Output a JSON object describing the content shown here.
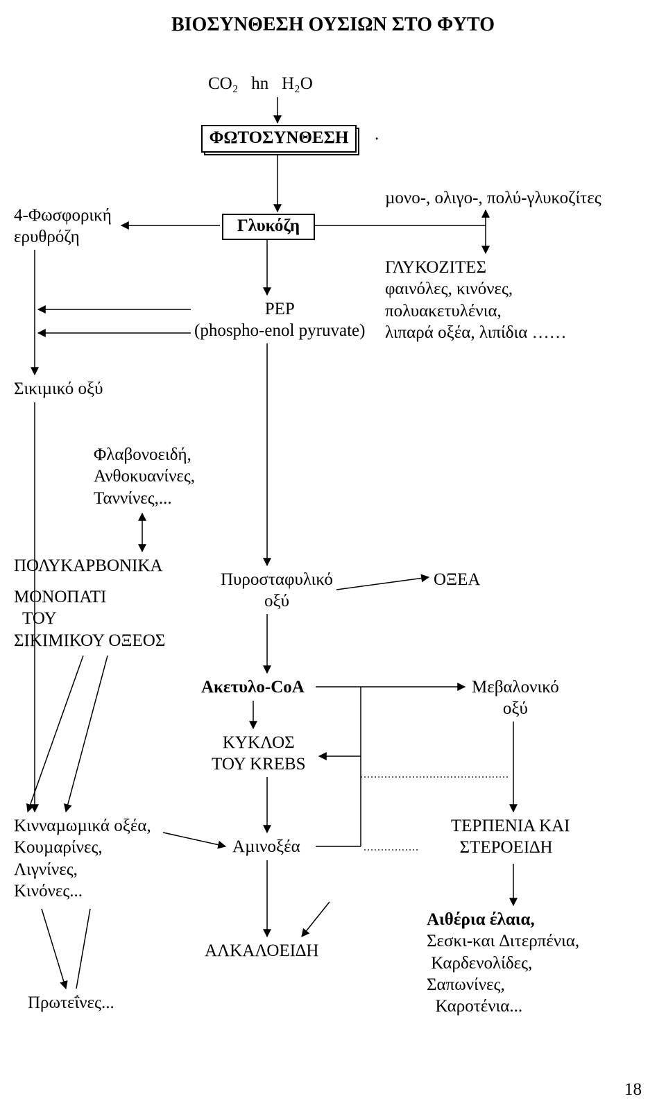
{
  "title": "ΒΙΟΣΥΝΘΕΣΗ ΟΥΣΙΩΝ ΣΤΟ ΦΥΤΟ",
  "inputs": "CO₂   hn   H₂O",
  "photosynthesis": "ΦΩΤΟΣΥΝΘΕΣΗ",
  "dot": ".",
  "glucose": "Γλυκόζη",
  "glycosites": "µονο-, ολιγο-, πολύ-γλυκοζίτες",
  "erythrose": "4-Φωσφορική\nερυθρόζη",
  "pep": "PEP\n(phospho-enol pyruvate)",
  "glycosides_block": "ΓΛΥΚΟΖΙΤΕΣ\nφαινόλες, κινόνες,\nπολυακετυλένια,\nλιπαρά οξέα, λιπίδια ……",
  "shikimic": "Σικιµικό οξύ",
  "flavonoids": "Φλαβονοειδή,\nΑνθοκυανίνες,\nΤαννίνες,...",
  "polycarbonic": "ΠΟΛΥΚΑΡΒΟΝΙΚΑ",
  "path_label": "ΜΟΝΟΠΑΤΙ\n  ΤΟΥ\nΣΙΚΙΜΙΚΟΥ ΟΞΕΟΣ",
  "pyruvic": "Πυροσταφυλικό\nοξύ",
  "oxea": "ΟΞΕΑ",
  "acetylcoa": "Ακετυλο-CoA",
  "mevalonic": "Μεβαλονικό\nοξύ",
  "krebs": "ΚΥΚΛΟΣ\nΤΟΥ KREBS",
  "cinnamic": "Κινναµωµικά οξέα,\nΚουµαρίνες,\nΛιγνίνες,\nΚινόνες...",
  "aminoacids": "Αµινοξέα",
  "terpenes": "ΤΕΡΠΕΝΙΑ ΚΑΙ\n  ΣΤΕΡΟΕΙ∆Η",
  "alkaloids": "ΑΛΚΑΛΟΕΙ∆Η",
  "essential": "Αιθέρια έλαια,\nΣεσκι-και ∆ιτερπένια,\n Καρδενολίδες,\nΣαπωνίνες,\n  Καροτένια...",
  "proteins": "Πρωτεΐνες...",
  "page_no": "18",
  "style": {
    "title_fs": 28,
    "title_fw": "bold",
    "text_fs": 25,
    "box_fs": 25,
    "box_fw": "bold",
    "bold_fs": 25,
    "page_fs": 25
  },
  "colors": {
    "line": "#000000",
    "dotted": "#000000"
  }
}
